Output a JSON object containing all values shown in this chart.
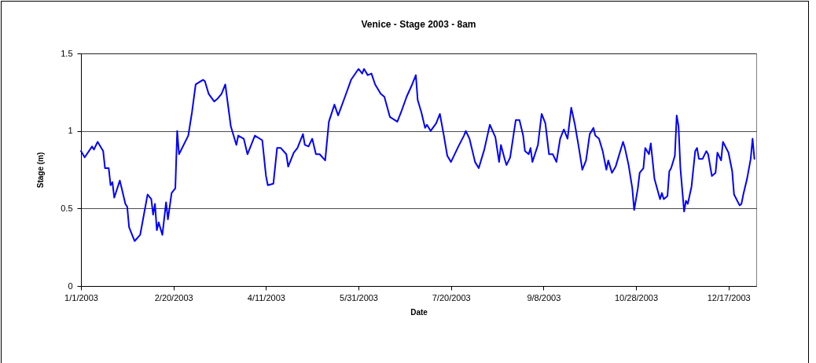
{
  "chart_data": {
    "type": "line",
    "title": "Venice - Stage 2003 - 8am",
    "xlabel": "Date",
    "ylabel": "Stage (m)",
    "x": [
      "2003-01-01",
      "2003-01-03",
      "2003-01-07",
      "2003-01-08",
      "2003-01-10",
      "2003-01-13",
      "2003-01-14",
      "2003-01-16",
      "2003-01-17",
      "2003-01-18",
      "2003-01-19",
      "2003-01-22",
      "2003-01-25",
      "2003-01-26",
      "2003-01-27",
      "2003-01-30",
      "2003-02-02",
      "2003-02-04",
      "2003-02-06",
      "2003-02-08",
      "2003-02-09",
      "2003-02-10",
      "2003-02-11",
      "2003-02-12",
      "2003-02-14",
      "2003-02-16",
      "2003-02-17",
      "2003-02-19",
      "2003-02-21",
      "2003-02-22",
      "2003-02-23",
      "2003-02-28",
      "2003-03-02",
      "2003-03-04",
      "2003-03-08",
      "2003-03-09",
      "2003-03-11",
      "2003-03-14",
      "2003-03-16",
      "2003-03-18",
      "2003-03-20",
      "2003-03-23",
      "2003-03-26",
      "2003-03-27",
      "2003-03-30",
      "2003-04-01",
      "2003-04-05",
      "2003-04-09",
      "2003-04-11",
      "2003-04-12",
      "2003-04-15",
      "2003-04-17",
      "2003-04-19",
      "2003-04-22",
      "2003-04-23",
      "2003-04-26",
      "2003-04-28",
      "2003-05-01",
      "2003-05-02",
      "2003-05-04",
      "2003-05-06",
      "2003-05-08",
      "2003-05-10",
      "2003-05-13",
      "2003-05-15",
      "2003-05-18",
      "2003-05-20",
      "2003-05-24",
      "2003-05-27",
      "2003-05-31",
      "2003-06-02",
      "2003-06-03",
      "2003-06-05",
      "2003-06-07",
      "2003-06-09",
      "2003-06-12",
      "2003-06-14",
      "2003-06-17",
      "2003-06-21",
      "2003-06-23",
      "2003-06-26",
      "2003-06-29",
      "2003-07-01",
      "2003-07-02",
      "2003-07-04",
      "2003-07-06",
      "2003-07-07",
      "2003-07-09",
      "2003-07-12",
      "2003-07-14",
      "2003-07-16",
      "2003-07-18",
      "2003-07-20",
      "2003-07-24",
      "2003-07-27",
      "2003-07-28",
      "2003-07-30",
      "2003-08-02",
      "2003-08-04",
      "2003-08-07",
      "2003-08-10",
      "2003-08-13",
      "2003-08-15",
      "2003-08-16",
      "2003-08-18",
      "2003-08-19",
      "2003-08-21",
      "2003-08-24",
      "2003-08-26",
      "2003-08-28",
      "2003-08-29",
      "2003-08-31",
      "2003-09-01",
      "2003-09-02",
      "2003-09-05",
      "2003-09-07",
      "2003-09-09",
      "2003-09-11",
      "2003-09-13",
      "2003-09-15",
      "2003-09-17",
      "2003-09-19",
      "2003-09-21",
      "2003-09-23",
      "2003-09-25",
      "2003-09-27",
      "2003-09-29",
      "2003-10-01",
      "2003-10-03",
      "2003-10-05",
      "2003-10-06",
      "2003-10-08",
      "2003-10-10",
      "2003-10-12",
      "2003-10-13",
      "2003-10-15",
      "2003-10-17",
      "2003-10-18",
      "2003-10-21",
      "2003-10-22",
      "2003-10-24",
      "2003-10-26",
      "2003-10-27",
      "2003-10-29",
      "2003-10-30",
      "2003-11-01",
      "2003-11-02",
      "2003-11-04",
      "2003-11-05",
      "2003-11-07",
      "2003-11-10",
      "2003-11-11",
      "2003-11-12",
      "2003-11-14",
      "2003-11-15",
      "2003-11-16",
      "2003-11-18",
      "2003-11-19",
      "2003-11-20",
      "2003-11-21",
      "2003-11-23",
      "2003-11-24",
      "2003-11-25",
      "2003-11-27",
      "2003-11-29",
      "2003-11-30",
      "2003-12-01",
      "2003-12-03",
      "2003-12-05",
      "2003-12-06",
      "2003-12-08",
      "2003-12-10",
      "2003-12-11",
      "2003-12-13",
      "2003-12-14",
      "2003-12-17",
      "2003-12-19",
      "2003-12-20",
      "2003-12-23",
      "2003-12-24",
      "2003-12-25",
      "2003-12-27",
      "2003-12-29",
      "2003-12-30",
      "2003-12-31"
    ],
    "series": [
      {
        "color": "#0000ff",
        "values": [
          0.87,
          0.83,
          0.9,
          0.88,
          0.93,
          0.87,
          0.76,
          0.76,
          0.65,
          0.67,
          0.57,
          0.68,
          0.53,
          0.51,
          0.38,
          0.29,
          0.33,
          0.46,
          0.59,
          0.56,
          0.46,
          0.53,
          0.36,
          0.41,
          0.33,
          0.54,
          0.43,
          0.6,
          0.63,
          1.0,
          0.85,
          0.97,
          1.12,
          1.3,
          1.33,
          1.32,
          1.24,
          1.19,
          1.21,
          1.24,
          1.3,
          1.03,
          0.91,
          0.97,
          0.95,
          0.85,
          0.97,
          0.94,
          0.71,
          0.65,
          0.66,
          0.89,
          0.89,
          0.85,
          0.77,
          0.86,
          0.89,
          0.98,
          0.91,
          0.9,
          0.95,
          0.85,
          0.85,
          0.81,
          1.06,
          1.17,
          1.1,
          1.23,
          1.33,
          1.4,
          1.37,
          1.4,
          1.36,
          1.37,
          1.3,
          1.24,
          1.22,
          1.09,
          1.06,
          1.12,
          1.22,
          1.3,
          1.36,
          1.2,
          1.12,
          1.02,
          1.04,
          1.0,
          1.05,
          1.11,
          0.98,
          0.84,
          0.8,
          0.9,
          0.97,
          1.0,
          0.95,
          0.8,
          0.76,
          0.88,
          1.04,
          0.96,
          0.8,
          0.91,
          0.82,
          0.78,
          0.83,
          1.07,
          1.07,
          0.97,
          0.87,
          0.85,
          0.89,
          0.8,
          0.91,
          1.11,
          1.05,
          0.85,
          0.85,
          0.8,
          0.95,
          1.01,
          0.95,
          1.15,
          1.04,
          0.9,
          0.75,
          0.81,
          0.98,
          1.02,
          0.97,
          0.95,
          0.87,
          0.75,
          0.81,
          0.73,
          0.77,
          0.81,
          0.93,
          0.89,
          0.78,
          0.63,
          0.49,
          0.63,
          0.73,
          0.76,
          0.89,
          0.85,
          0.92,
          0.69,
          0.56,
          0.6,
          0.56,
          0.58,
          0.74,
          0.76,
          0.84,
          1.1,
          1.03,
          0.76,
          0.48,
          0.55,
          0.53,
          0.64,
          0.87,
          0.89,
          0.82,
          0.82,
          0.87,
          0.85,
          0.71,
          0.73,
          0.86,
          0.81,
          0.93,
          0.86,
          0.74,
          0.59,
          0.52,
          0.53,
          0.59,
          0.69,
          0.82,
          0.95,
          0.82
        ]
      }
    ],
    "xlim": [
      "2003-01-01",
      "2004-01-01"
    ],
    "xticks": [
      {
        "value": "2003-01-01",
        "label": "1/1/2003"
      },
      {
        "value": "2003-02-20",
        "label": "2/20/2003"
      },
      {
        "value": "2003-04-11",
        "label": "4/11/2003"
      },
      {
        "value": "2003-05-31",
        "label": "5/31/2003"
      },
      {
        "value": "2003-07-20",
        "label": "7/20/2003"
      },
      {
        "value": "2003-09-08",
        "label": "9/8/2003"
      },
      {
        "value": "2003-10-28",
        "label": "10/28/2003"
      },
      {
        "value": "2003-12-17",
        "label": "12/17/2003"
      }
    ],
    "ylim": [
      0,
      1.5
    ],
    "yticks": [
      0,
      0.5,
      1,
      1.5
    ],
    "grid": "y"
  }
}
